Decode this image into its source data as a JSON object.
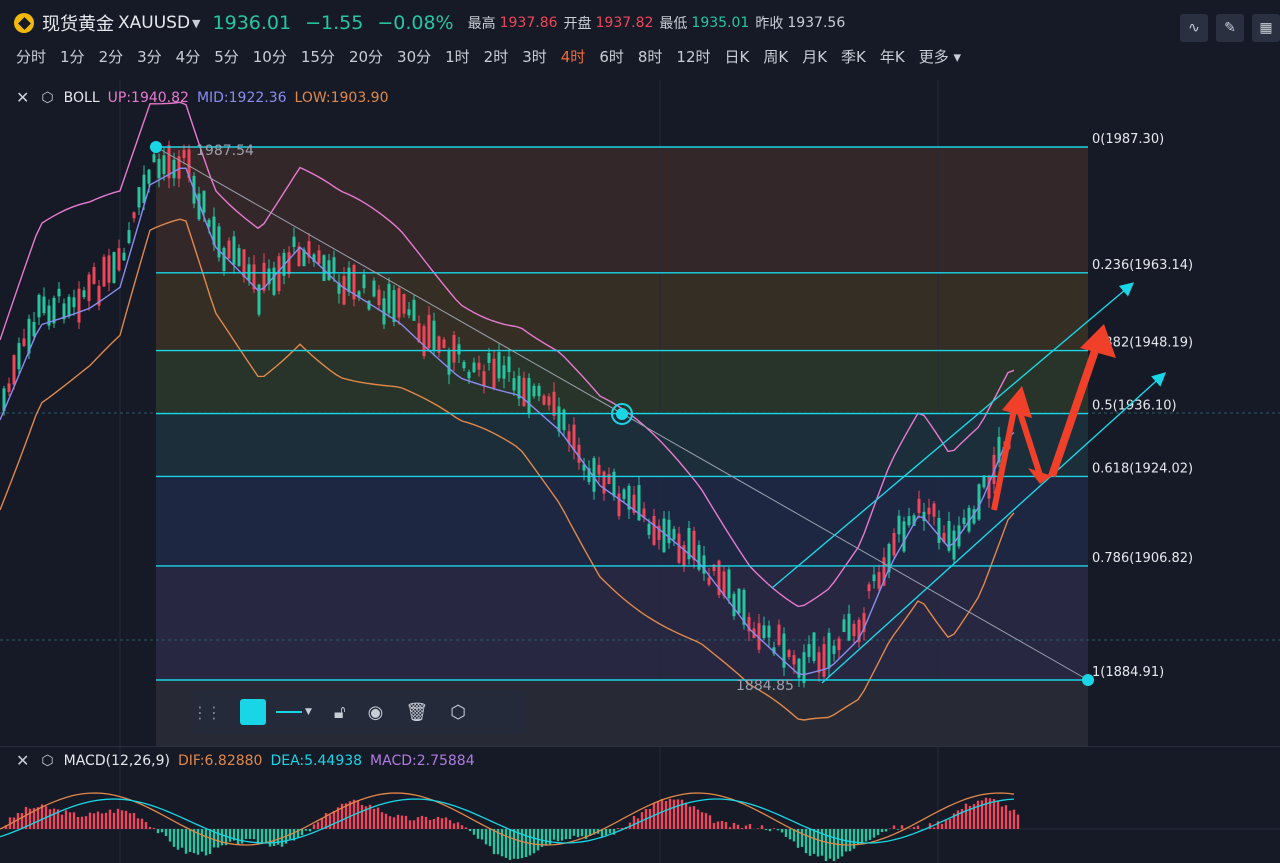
{
  "header": {
    "name": "现货黄金",
    "code": "XAUUSD",
    "price": "1936.01",
    "change": "−1.55",
    "change_pct": "−0.08%",
    "high_label": "最高",
    "high": "1937.86",
    "open_label": "开盘",
    "open": "1937.82",
    "low_label": "最低",
    "low": "1935.01",
    "prev_label": "昨收",
    "prev": "1937.56"
  },
  "timeframes": [
    "分时",
    "1分",
    "2分",
    "3分",
    "4分",
    "5分",
    "10分",
    "15分",
    "20分",
    "30分",
    "1时",
    "2时",
    "3时",
    "4时",
    "6时",
    "8时",
    "12时",
    "日K",
    "周K",
    "月K",
    "季K",
    "年K",
    "更多"
  ],
  "active_timeframe": "4时",
  "boll": {
    "name": "BOLL",
    "up": "UP:1940.82",
    "mid": "MID:1922.36",
    "low": "LOW:1903.90"
  },
  "macd": {
    "name": "MACD(12,26,9)",
    "dif": "DIF:6.82880",
    "dea": "DEA:5.44938",
    "macd": "MACD:2.75884"
  },
  "fib": [
    {
      "label": "0(1987.30)",
      "value": 1987.3
    },
    {
      "label": "0.236(1963.14)",
      "value": 1963.14
    },
    {
      "label": "0.382(1948.19)",
      "value": 1948.19
    },
    {
      "label": "0.5(1936.10)",
      "value": 1936.1
    },
    {
      "label": "0.618(1924.02)",
      "value": 1924.02
    },
    {
      "label": "0.786(1906.82)",
      "value": 1906.82
    },
    {
      "label": "1(1884.91)",
      "value": 1884.91
    }
  ],
  "marks": {
    "high": "1987.54",
    "low": "1884.85"
  },
  "colors": {
    "up": "#f0465a",
    "down": "#26c6a0",
    "fib": "#19d6e6",
    "boll_up": "#e87ad0",
    "boll_mid": "#8a8cf0",
    "boll_low": "#e0884a",
    "arrow": "#f0402a",
    "active": "#f06b3a"
  },
  "icons": [
    "close-icon",
    "settings-icon",
    "drag-handle-icon",
    "lock-open-icon",
    "eye-icon",
    "trash-icon",
    "settings-icon"
  ]
}
